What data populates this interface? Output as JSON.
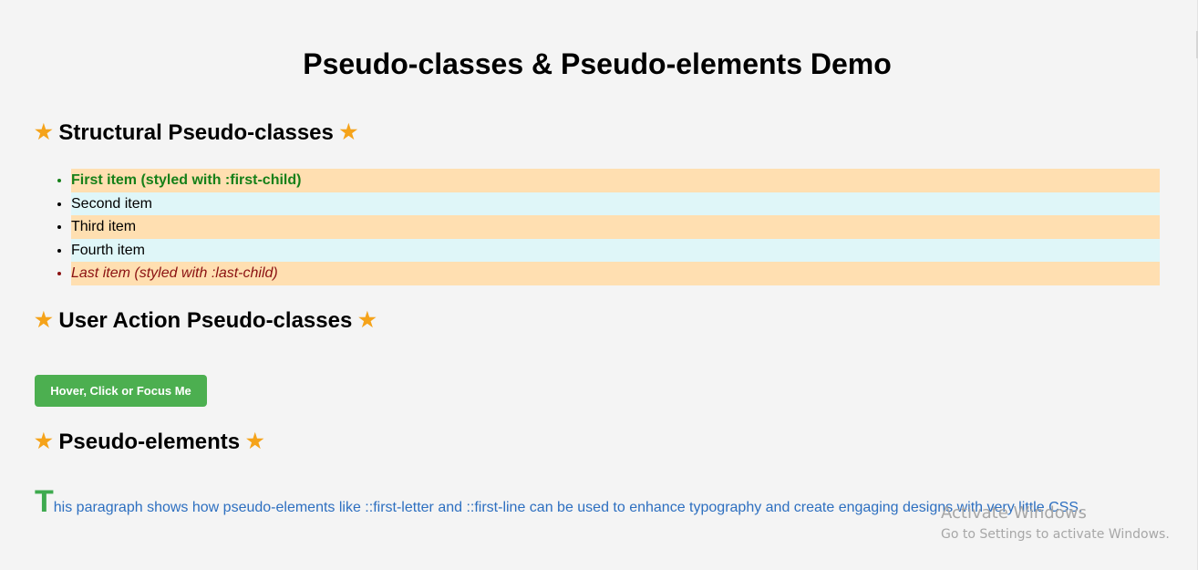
{
  "page": {
    "title": "Pseudo-classes & Pseudo-elements Demo"
  },
  "star_glyph": "★",
  "sections": {
    "structural": {
      "heading": "Structural Pseudo-classes"
    },
    "user_action": {
      "heading": "User Action Pseudo-classes",
      "button_label": "Hover, Click or Focus Me"
    },
    "pseudo_elements": {
      "heading": "Pseudo-elements",
      "first_letter": "T",
      "paragraph_rest": "his paragraph shows how pseudo-elements like ::first-letter and ::first-line can be used to enhance typography and create engaging designs with very little CSS."
    }
  },
  "list_items": [
    "First item (styled with :first-child)",
    "Second item",
    "Third item",
    "Fourth item",
    "Last item (styled with :last-child)"
  ],
  "watermark": {
    "title": "Activate Windows",
    "subtitle": "Go to Settings to activate Windows."
  },
  "colors": {
    "background": "#f4f4f4",
    "star": "#f5a31a",
    "odd_row": "#ffdfb1",
    "even_row": "#dff6f8",
    "first_child_text": "#168019",
    "last_child_text": "#8b1212",
    "button": "#4caf50",
    "paragraph": "#2d6fc0",
    "first_letter": "#3eaa4f"
  }
}
